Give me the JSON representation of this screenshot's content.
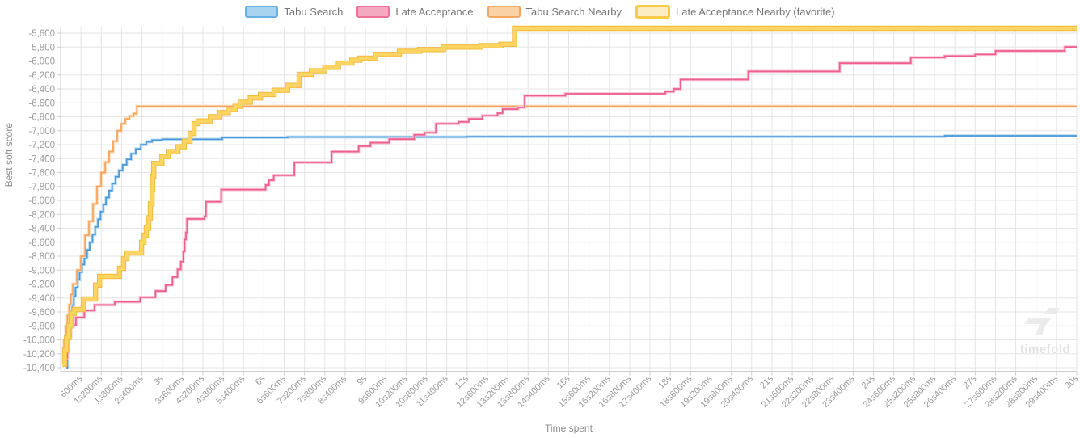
{
  "watermark": {
    "text": "timefold"
  },
  "chart_data": {
    "type": "line",
    "subtype": "step-after",
    "title": "",
    "xlabel": "Time spent",
    "ylabel": "Best soft score",
    "xlim_ms": [
      0,
      30000
    ],
    "ylim": [
      -10400,
      -5600
    ],
    "grid": true,
    "legend_position": "top-center",
    "x_tick_interval_ms": 600,
    "x_tick_labels": [
      "600ms",
      "1s200ms",
      "1s800ms",
      "2s400ms",
      "3s",
      "3s600ms",
      "4s200ms",
      "4s800ms",
      "5s400ms",
      "6s",
      "6s600ms",
      "7s200ms",
      "7s800ms",
      "8s400ms",
      "9s",
      "9s600ms",
      "10s200ms",
      "10s800ms",
      "11s400ms",
      "12s",
      "12s600ms",
      "13s200ms",
      "13s800ms",
      "14s400ms",
      "15s",
      "15s600ms",
      "16s200ms",
      "16s800ms",
      "17s400ms",
      "18s",
      "18s600ms",
      "19s200ms",
      "19s800ms",
      "20s400ms",
      "21s",
      "21s600ms",
      "22s200ms",
      "22s800ms",
      "23s400ms",
      "24s",
      "24s600ms",
      "25s200ms",
      "25s800ms",
      "26s400ms",
      "27s",
      "27s600ms",
      "28s200ms",
      "28s800ms",
      "29s400ms",
      "30s"
    ],
    "y_ticks": [
      -5600,
      -5800,
      -6000,
      -6200,
      -6400,
      -6600,
      -6800,
      -7000,
      -7200,
      -7400,
      -7600,
      -7800,
      -8000,
      -8200,
      -8400,
      -8600,
      -8800,
      -9000,
      -9200,
      -9400,
      -9600,
      -9800,
      -10000,
      -10200,
      -10400
    ],
    "grid_color": "#e5e5e5",
    "axis_line_color": "#cfcfcf",
    "tick_label_color": "#9a9a9a",
    "series": [
      {
        "id": "tabu-search",
        "name": "Tabu Search",
        "color": "#4a98d9",
        "casing": "#bcdef5",
        "swatch_fill": "#a8d4f0",
        "swatch_border": "#67b1e3",
        "swatch_border_width": 2,
        "width": 1.7,
        "points": [
          [
            170,
            -10400
          ],
          [
            200,
            -10170
          ],
          [
            230,
            -9950
          ],
          [
            260,
            -9800
          ],
          [
            300,
            -9650
          ],
          [
            340,
            -9500
          ],
          [
            390,
            -9370
          ],
          [
            440,
            -9250
          ],
          [
            500,
            -9140
          ],
          [
            560,
            -9030
          ],
          [
            630,
            -8920
          ],
          [
            700,
            -8820
          ],
          [
            780,
            -8710
          ],
          [
            860,
            -8600
          ],
          [
            940,
            -8490
          ],
          [
            1020,
            -8380
          ],
          [
            1100,
            -8270
          ],
          [
            1180,
            -8160
          ],
          [
            1260,
            -8060
          ],
          [
            1340,
            -7960
          ],
          [
            1430,
            -7860
          ],
          [
            1520,
            -7760
          ],
          [
            1620,
            -7660
          ],
          [
            1720,
            -7570
          ],
          [
            1830,
            -7490
          ],
          [
            1950,
            -7410
          ],
          [
            2080,
            -7330
          ],
          [
            2220,
            -7260
          ],
          [
            2370,
            -7200
          ],
          [
            2530,
            -7160
          ],
          [
            2700,
            -7135
          ],
          [
            3000,
            -7122
          ],
          [
            4770,
            -7098
          ],
          [
            6700,
            -7090
          ],
          [
            12000,
            -7085
          ],
          [
            26100,
            -7072
          ]
        ]
      },
      {
        "id": "tabu-search-nearby",
        "name": "Tabu Search Nearby",
        "color": "#f5a45f",
        "casing": "#fbdcb9",
        "swatch_fill": "#fad1a4",
        "swatch_border": "#f3a765",
        "swatch_border_width": 2,
        "width": 1.7,
        "points": [
          [
            50,
            -10300
          ],
          [
            100,
            -10000
          ],
          [
            150,
            -9800
          ],
          [
            200,
            -9650
          ],
          [
            250,
            -9500
          ],
          [
            300,
            -9350
          ],
          [
            360,
            -9200
          ],
          [
            480,
            -9000
          ],
          [
            600,
            -8800
          ],
          [
            720,
            -8500
          ],
          [
            835,
            -8300
          ],
          [
            955,
            -8050
          ],
          [
            1075,
            -7800
          ],
          [
            1195,
            -7600
          ],
          [
            1315,
            -7450
          ],
          [
            1430,
            -7300
          ],
          [
            1550,
            -7150
          ],
          [
            1670,
            -7000
          ],
          [
            1790,
            -6900
          ],
          [
            1910,
            -6830
          ],
          [
            2030,
            -6790
          ],
          [
            2150,
            -6755
          ],
          [
            2250,
            -6651
          ]
        ]
      },
      {
        "id": "late-acceptance",
        "name": "Late Acceptance",
        "color": "#ec5f8f",
        "casing": "#f9c3d4",
        "swatch_fill": "#f5a9c1",
        "swatch_border": "#ee7197",
        "swatch_border_width": 2,
        "width": 1.7,
        "points": [
          [
            50,
            -10350
          ],
          [
            150,
            -10260
          ],
          [
            200,
            -9960
          ],
          [
            300,
            -9790
          ],
          [
            450,
            -9680
          ],
          [
            700,
            -9580
          ],
          [
            1000,
            -9500
          ],
          [
            1600,
            -9455
          ],
          [
            2350,
            -9390
          ],
          [
            2800,
            -9300
          ],
          [
            3100,
            -9215
          ],
          [
            3300,
            -9100
          ],
          [
            3450,
            -8990
          ],
          [
            3550,
            -8880
          ],
          [
            3620,
            -8730
          ],
          [
            3660,
            -8560
          ],
          [
            3700,
            -8460
          ],
          [
            3730,
            -8265
          ],
          [
            4250,
            -8230
          ],
          [
            4290,
            -8020
          ],
          [
            4740,
            -7845
          ],
          [
            6050,
            -7780
          ],
          [
            6150,
            -7710
          ],
          [
            6290,
            -7640
          ],
          [
            6900,
            -7455
          ],
          [
            8000,
            -7300
          ],
          [
            8800,
            -7222
          ],
          [
            9150,
            -7172
          ],
          [
            9700,
            -7120
          ],
          [
            10440,
            -7058
          ],
          [
            10750,
            -7028
          ],
          [
            11080,
            -6900
          ],
          [
            11750,
            -6873
          ],
          [
            12050,
            -6830
          ],
          [
            12450,
            -6785
          ],
          [
            12900,
            -6748
          ],
          [
            13050,
            -6690
          ],
          [
            13500,
            -6665
          ],
          [
            13700,
            -6497
          ],
          [
            14900,
            -6470
          ],
          [
            17850,
            -6440
          ],
          [
            18100,
            -6400
          ],
          [
            18300,
            -6265
          ],
          [
            20300,
            -6150
          ],
          [
            23000,
            -6030
          ],
          [
            25100,
            -5950
          ],
          [
            26100,
            -5928
          ],
          [
            27000,
            -5905
          ],
          [
            27600,
            -5855
          ],
          [
            29650,
            -5798
          ]
        ]
      },
      {
        "id": "late-acceptance-nearby",
        "name": "Late Acceptance Nearby (favorite)",
        "color": "#fcd462",
        "casing": "#efba40",
        "swatch_fill": "#fdedc3",
        "swatch_border": "#f7ca4b",
        "swatch_border_width": 3,
        "width": 4.4,
        "points": [
          [
            50,
            -10350
          ],
          [
            120,
            -10150
          ],
          [
            170,
            -9970
          ],
          [
            240,
            -9800
          ],
          [
            310,
            -9620
          ],
          [
            400,
            -9565
          ],
          [
            670,
            -9415
          ],
          [
            1030,
            -9215
          ],
          [
            1150,
            -9090
          ],
          [
            1740,
            -8975
          ],
          [
            1860,
            -8835
          ],
          [
            1960,
            -8755
          ],
          [
            2390,
            -8600
          ],
          [
            2460,
            -8500
          ],
          [
            2530,
            -8400
          ],
          [
            2600,
            -8250
          ],
          [
            2650,
            -8050
          ],
          [
            2700,
            -7850
          ],
          [
            2720,
            -7650
          ],
          [
            2750,
            -7470
          ],
          [
            2990,
            -7370
          ],
          [
            3180,
            -7300
          ],
          [
            3460,
            -7230
          ],
          [
            3650,
            -7150
          ],
          [
            3820,
            -7040
          ],
          [
            3940,
            -6900
          ],
          [
            4060,
            -6860
          ],
          [
            4420,
            -6800
          ],
          [
            4700,
            -6740
          ],
          [
            4950,
            -6695
          ],
          [
            5150,
            -6650
          ],
          [
            5300,
            -6590
          ],
          [
            5600,
            -6530
          ],
          [
            5900,
            -6480
          ],
          [
            6300,
            -6420
          ],
          [
            6700,
            -6350
          ],
          [
            7040,
            -6190
          ],
          [
            7400,
            -6140
          ],
          [
            7800,
            -6090
          ],
          [
            8200,
            -6030
          ],
          [
            8600,
            -5990
          ],
          [
            8830,
            -5960
          ],
          [
            9300,
            -5905
          ],
          [
            10000,
            -5860
          ],
          [
            10600,
            -5835
          ],
          [
            11300,
            -5800
          ],
          [
            12400,
            -5780
          ],
          [
            13000,
            -5760
          ],
          [
            13400,
            -5530
          ]
        ]
      }
    ],
    "legend_order": [
      "tabu-search",
      "late-acceptance",
      "tabu-search-nearby",
      "late-acceptance-nearby"
    ]
  }
}
